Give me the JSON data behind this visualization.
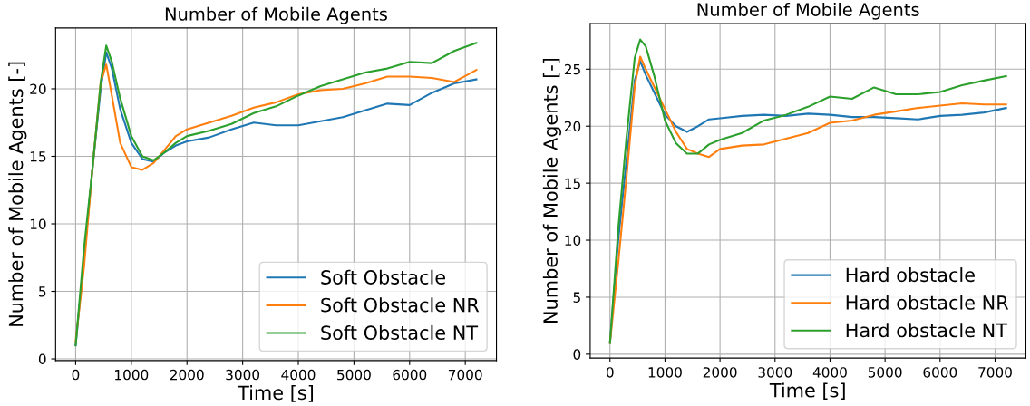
{
  "chart_data": [
    {
      "type": "line",
      "title": "Number of Mobile Agents",
      "xlabel": "Time [s]",
      "ylabel": "Number of Mobile Agents [-]",
      "x": [
        0,
        150,
        300,
        450,
        550,
        650,
        800,
        1000,
        1200,
        1400,
        1600,
        1800,
        2000,
        2400,
        2800,
        3200,
        3600,
        4000,
        4400,
        4800,
        5200,
        5600,
        6000,
        6400,
        6800,
        7200
      ],
      "series": [
        {
          "name": "Soft Obstacle",
          "color": "#1f77b4",
          "values": [
            1,
            7.5,
            14,
            20,
            22.7,
            21.5,
            18.5,
            16,
            14.8,
            14.6,
            15.3,
            15.8,
            16.1,
            16.4,
            17,
            17.5,
            17.3,
            17.3,
            17.6,
            17.9,
            18.4,
            18.9,
            18.8,
            19.7,
            20.4,
            20.7
          ]
        },
        {
          "name": "Soft Obstacle NR",
          "color": "#ff7f0e",
          "values": [
            1.3,
            6.8,
            14,
            20.5,
            21.8,
            19.5,
            16,
            14.2,
            14,
            14.5,
            15.5,
            16.5,
            17,
            17.5,
            18,
            18.6,
            19,
            19.6,
            19.9,
            20,
            20.4,
            20.9,
            20.9,
            20.8,
            20.5,
            21.4
          ]
        },
        {
          "name": "Soft Obstacle NT",
          "color": "#2ca02c",
          "values": [
            1,
            8.2,
            14,
            20.5,
            23.2,
            22,
            19.3,
            16.5,
            15,
            14.7,
            15.3,
            16,
            16.5,
            16.9,
            17.4,
            18.2,
            18.7,
            19.5,
            20.2,
            20.7,
            21.2,
            21.5,
            22,
            21.9,
            22.8,
            23.4
          ]
        }
      ],
      "xlim": [
        -360,
        7560
      ],
      "ylim": [
        -0.12,
        24.5
      ],
      "xticks": [
        0,
        1000,
        2000,
        3000,
        4000,
        5000,
        6000,
        7000
      ],
      "yticks": [
        0,
        5,
        10,
        15,
        20
      ],
      "grid": true,
      "legend": "bottom right",
      "line_style": "solid",
      "marker": "none"
    },
    {
      "type": "line",
      "title": "Number of Mobile Agents",
      "xlabel": "Time [s]",
      "ylabel": "Number of Mobile Agents [-]",
      "x": [
        0,
        150,
        300,
        450,
        550,
        650,
        800,
        1000,
        1200,
        1400,
        1600,
        1800,
        2000,
        2400,
        2800,
        3200,
        3600,
        4000,
        4400,
        4800,
        5200,
        5600,
        6000,
        6400,
        6800,
        7200
      ],
      "series": [
        {
          "name": "Hard obstacle",
          "color": "#1f77b4",
          "values": [
            1,
            10,
            17,
            24,
            25.7,
            24.5,
            23,
            21,
            20,
            19.5,
            20,
            20.6,
            20.7,
            20.9,
            21,
            20.9,
            21.1,
            21,
            20.8,
            20.8,
            20.7,
            20.6,
            20.9,
            21,
            21.2,
            21.6
          ]
        },
        {
          "name": "Hard obstacle NR",
          "color": "#ff7f0e",
          "values": [
            1,
            8,
            15.5,
            23.5,
            26.1,
            25,
            23.5,
            21.5,
            19.5,
            18,
            17.6,
            17.3,
            18,
            18.3,
            18.4,
            18.9,
            19.4,
            20.3,
            20.5,
            21,
            21.3,
            21.6,
            21.8,
            22,
            21.9,
            21.9
          ]
        },
        {
          "name": "Hard obstacle NT",
          "color": "#2ca02c",
          "values": [
            1,
            11,
            19,
            26,
            27.6,
            27,
            24.5,
            20.5,
            18.5,
            17.6,
            17.6,
            18.4,
            18.8,
            19.4,
            20.5,
            21,
            21.7,
            22.6,
            22.4,
            23.4,
            22.8,
            22.8,
            23,
            23.6,
            24,
            24.4
          ]
        }
      ],
      "xlim": [
        -360,
        7560
      ],
      "ylim": [
        -0.34,
        29
      ],
      "xticks": [
        0,
        1000,
        2000,
        3000,
        4000,
        5000,
        6000,
        7000
      ],
      "yticks": [
        0,
        5,
        10,
        15,
        20,
        25
      ],
      "grid": true,
      "legend": "bottom right",
      "line_style": "solid",
      "marker": "none"
    }
  ]
}
